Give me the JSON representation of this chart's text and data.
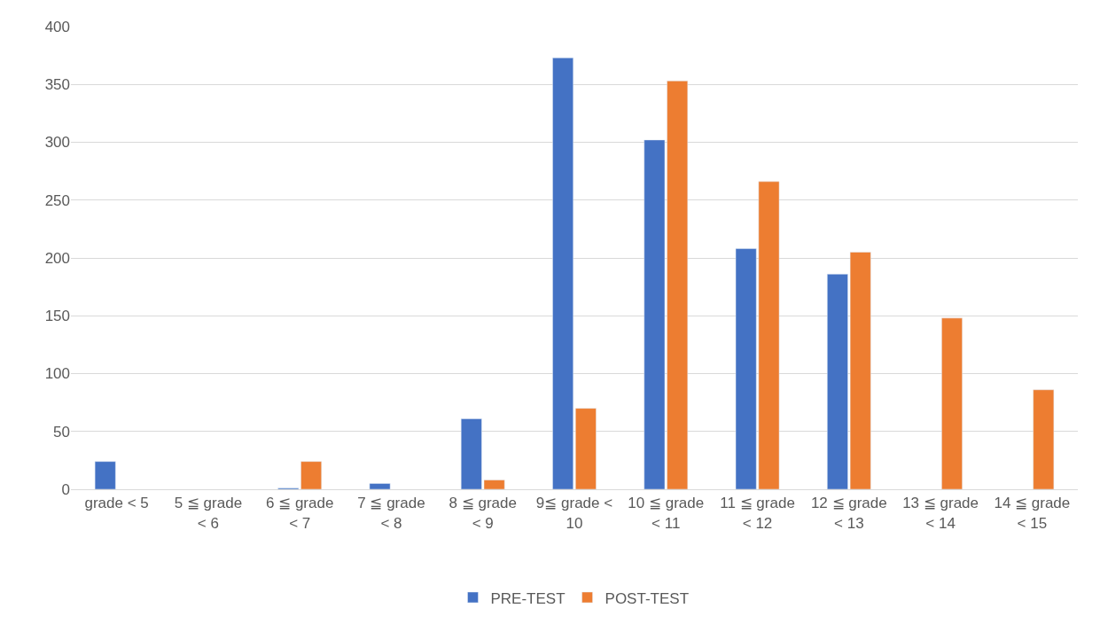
{
  "chart_data": {
    "type": "bar",
    "categories": [
      "grade < 5",
      "5 ≦ grade < 6",
      "6 ≦ grade < 7",
      "7 ≦ grade < 8",
      "8 ≦ grade < 9",
      "9≦ grade < 10",
      "10 ≦ grade < 11",
      "11 ≦ grade < 12",
      "12 ≦ grade < 13",
      "13 ≦ grade < 14",
      "14 ≦ grade < 15"
    ],
    "series": [
      {
        "name": "PRE-TEST",
        "color": "#4472c4",
        "values": [
          24,
          null,
          1,
          5,
          61,
          373,
          302,
          208,
          186,
          null,
          null
        ]
      },
      {
        "name": "POST-TEST",
        "color": "#ed7d31",
        "values": [
          null,
          null,
          24,
          null,
          8,
          70,
          353,
          266,
          205,
          148,
          86
        ]
      }
    ],
    "ylim": [
      0,
      400
    ],
    "yticks": [
      0,
      50,
      100,
      150,
      200,
      250,
      300,
      350,
      400
    ],
    "grid": "y",
    "legend": "bottom"
  }
}
